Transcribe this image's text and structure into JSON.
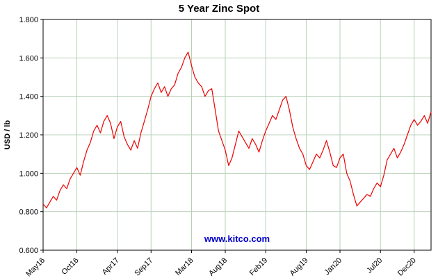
{
  "title": "5 Year Zinc Spot",
  "watermark": "www.kitco.com",
  "colors": {
    "line": "#ee0000",
    "grid": "#b8d0b8",
    "axis": "#000000",
    "watermark": "#0000cc"
  },
  "chart_data": {
    "type": "line",
    "title": "5 Year Zinc Spot",
    "xlabel": "",
    "ylabel": "USD / lb",
    "ylim": [
      0.6,
      1.8
    ],
    "yticks": [
      0.6,
      0.8,
      1.0,
      1.2,
      1.4,
      1.6,
      1.8
    ],
    "ytick_labels": [
      "0.600",
      "0.800",
      "1.000",
      "1.200",
      "1.400",
      "1.600",
      "1.800"
    ],
    "xtick_labels": [
      "May16",
      "Oct16",
      "Apr17",
      "Sep17",
      "Mar18",
      "Aug18",
      "Feb19",
      "Aug19",
      "Jan20",
      "Jul20",
      "Dec20"
    ],
    "xtick_months": [
      0,
      5,
      11,
      16,
      22,
      27,
      33,
      39,
      44,
      50,
      55
    ],
    "x_span_months": 57.5,
    "grid": true,
    "legend": "none",
    "line_color": "#ee0000",
    "grid_color": "#b8d0b8",
    "series": [
      {
        "name": "Zinc Spot (USD/lb)",
        "interval": "biweekly",
        "values": [
          0.84,
          0.82,
          0.85,
          0.88,
          0.86,
          0.91,
          0.94,
          0.92,
          0.97,
          1.0,
          1.03,
          0.99,
          1.06,
          1.12,
          1.16,
          1.22,
          1.25,
          1.21,
          1.27,
          1.3,
          1.26,
          1.18,
          1.24,
          1.27,
          1.19,
          1.15,
          1.12,
          1.17,
          1.13,
          1.21,
          1.27,
          1.33,
          1.4,
          1.44,
          1.47,
          1.42,
          1.45,
          1.4,
          1.44,
          1.46,
          1.52,
          1.55,
          1.6,
          1.63,
          1.56,
          1.5,
          1.47,
          1.45,
          1.4,
          1.43,
          1.44,
          1.33,
          1.22,
          1.17,
          1.12,
          1.04,
          1.08,
          1.15,
          1.22,
          1.19,
          1.16,
          1.13,
          1.18,
          1.15,
          1.11,
          1.17,
          1.22,
          1.26,
          1.3,
          1.28,
          1.33,
          1.38,
          1.4,
          1.33,
          1.24,
          1.18,
          1.13,
          1.1,
          1.04,
          1.02,
          1.06,
          1.1,
          1.08,
          1.12,
          1.17,
          1.11,
          1.04,
          1.03,
          1.08,
          1.1,
          1.0,
          0.96,
          0.89,
          0.83,
          0.85,
          0.87,
          0.89,
          0.88,
          0.92,
          0.95,
          0.93,
          0.99,
          1.07,
          1.1,
          1.13,
          1.08,
          1.11,
          1.15,
          1.2,
          1.25,
          1.28,
          1.25,
          1.27,
          1.3,
          1.26,
          1.32
        ]
      }
    ]
  }
}
